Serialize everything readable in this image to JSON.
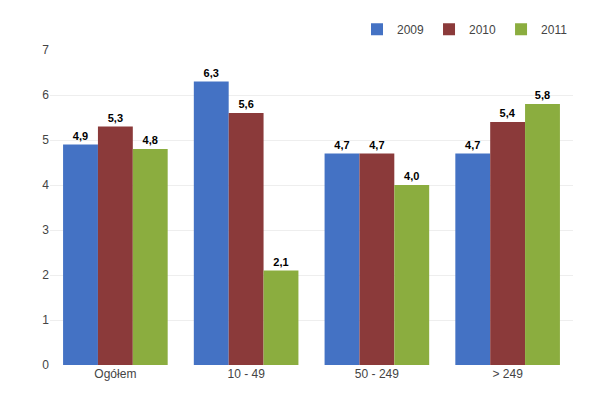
{
  "chart_data": {
    "type": "bar",
    "categories": [
      "Ogółem",
      "10 - 49",
      "50 - 249",
      "> 249"
    ],
    "series": [
      {
        "name": "2009",
        "color": "#4472C4",
        "values": [
          4.9,
          6.3,
          4.7,
          4.7
        ],
        "value_labels": [
          "4,9",
          "6,3",
          "4,7",
          "4,7"
        ]
      },
      {
        "name": "2010",
        "color": "#8B3A3A",
        "values": [
          5.3,
          5.6,
          4.7,
          5.4
        ],
        "value_labels": [
          "5,3",
          "5,6",
          "4,7",
          "5,4"
        ]
      },
      {
        "name": "2011",
        "color": "#8BAD3F",
        "values": [
          4.8,
          2.1,
          4.0,
          5.8
        ],
        "value_labels": [
          "4,8",
          "2,1",
          "4,0",
          "5,8"
        ]
      }
    ],
    "ylim": [
      0,
      7
    ],
    "yticks": [
      0,
      1,
      2,
      3,
      4,
      5,
      6,
      7
    ],
    "grid": true,
    "legend": "upper right",
    "data_labels": true
  }
}
